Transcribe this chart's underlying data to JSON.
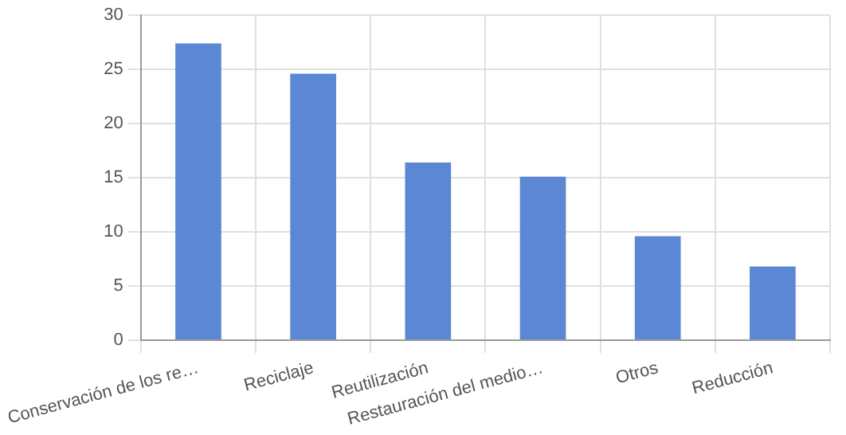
{
  "chart_data": {
    "type": "bar",
    "categories": [
      "Conservación de los re…",
      "Reciclaje",
      "Reutilización",
      "Restauración del medio…",
      "Otros",
      "Reducción"
    ],
    "values": [
      27.4,
      24.6,
      16.4,
      15.1,
      9.6,
      6.8
    ],
    "color": "#5b87d4",
    "ylim": [
      0,
      30
    ],
    "yticks": [
      0,
      5,
      10,
      15,
      20,
      25,
      30
    ],
    "grid": true,
    "legend": false
  }
}
